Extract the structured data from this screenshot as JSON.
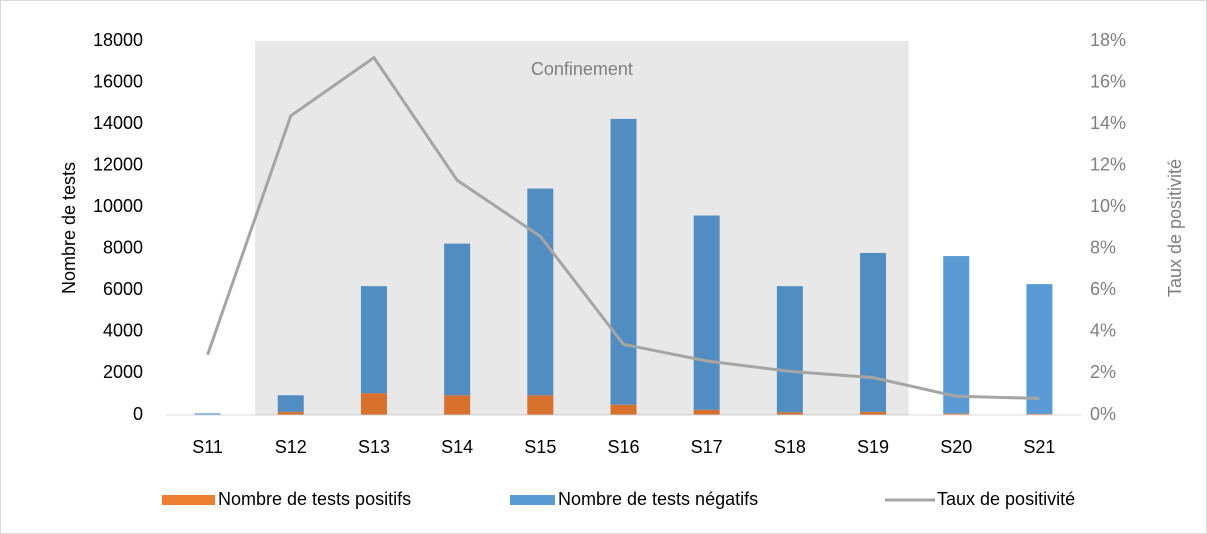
{
  "chart_data": {
    "type": "bar",
    "stacked": true,
    "categories": [
      "S11",
      "S12",
      "S13",
      "S14",
      "S15",
      "S16",
      "S17",
      "S18",
      "S19",
      "S20",
      "S21"
    ],
    "series": [
      {
        "name": "Nombre de tests positifs",
        "color": "#ed7d31",
        "values": [
          10,
          150,
          1050,
          950,
          950,
          500,
          250,
          130,
          150,
          70,
          50
        ]
      },
      {
        "name": "Nombre de tests négatifs",
        "color": "#5b9bd5",
        "values": [
          70,
          800,
          5150,
          7300,
          9950,
          13750,
          9350,
          6070,
          7650,
          7580,
          6250
        ]
      },
      {
        "name": "Taux de positivité",
        "color": "#a5a5a5",
        "type": "line",
        "axis": "y2",
        "values": [
          2.9,
          14.4,
          17.2,
          11.3,
          8.6,
          3.4,
          2.6,
          2.1,
          1.8,
          0.9,
          0.8
        ]
      }
    ],
    "ylabel": "Nombre de tests",
    "y2label": "Taux de positivité",
    "ylim": [
      0,
      18000
    ],
    "yticks": [
      0,
      2000,
      4000,
      6000,
      8000,
      10000,
      12000,
      14000,
      16000,
      18000
    ],
    "y2lim": [
      0,
      18
    ],
    "y2ticks": [
      {
        "value": 0,
        "label": "0%"
      },
      {
        "value": 2,
        "label": "2%"
      },
      {
        "value": 4,
        "label": "4%"
      },
      {
        "value": 6,
        "label": "6%"
      },
      {
        "value": 8,
        "label": "8%"
      },
      {
        "value": 10,
        "label": "10%"
      },
      {
        "value": 12,
        "label": "12%"
      },
      {
        "value": 14,
        "label": "14%"
      },
      {
        "value": 16,
        "label": "16%"
      },
      {
        "value": 18,
        "label": "18%"
      }
    ],
    "annotation": {
      "text": "Confinement",
      "categories": [
        "S12",
        "S19"
      ]
    },
    "legend": "bottom"
  }
}
